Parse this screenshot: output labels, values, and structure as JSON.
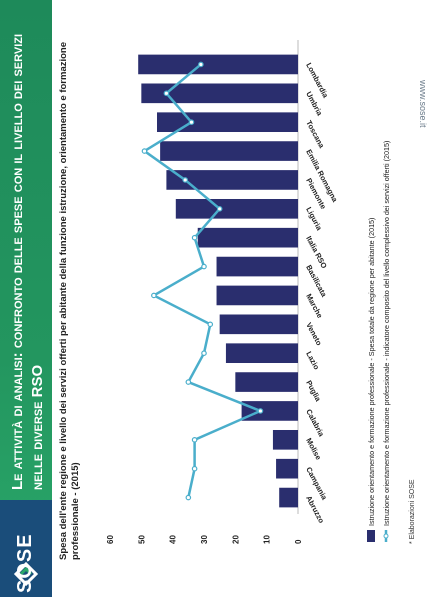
{
  "header": {
    "title": "Le attività di analisi: confronto delle spese con il livello dei servizi nelle diverse RSO"
  },
  "brand": {
    "name": "SOSE",
    "url": "www.sose.it"
  },
  "colors": {
    "banner": "#23965f",
    "bar": "#2a2e6e",
    "line": "#4aaecb"
  },
  "chart_data": {
    "type": "bar",
    "title": "Spesa dell'ente regione e livello dei servizi offerti per abitante della funzione istruzione, orientamento e formazione professionale - (2015)",
    "categories": [
      "Abruzzo",
      "Campania",
      "Molise",
      "Calabria",
      "Puglia",
      "Lazio",
      "Veneto",
      "Marche",
      "Basilicata",
      "Italia RSO",
      "Liguria",
      "Piemonte",
      "Emilia Romagna",
      "Toscana",
      "Umbria",
      "Lombardia"
    ],
    "ylim": [
      0,
      60
    ],
    "yticks": [
      "0",
      "10",
      "20",
      "30",
      "40",
      "50",
      "60"
    ],
    "grid": false,
    "series": [
      {
        "name": "Istruzione orientamento e formazione professionale - Spesa totale da regione per abitante (2015)",
        "type": "bar",
        "values": [
          6,
          7,
          8,
          18,
          20,
          23,
          25,
          26,
          26,
          32,
          39,
          42,
          44,
          45,
          50,
          51
        ]
      },
      {
        "name": "Istruzione orientamento e formazione professionale - indicatore composito del livello complessivo dei servizi offerti (2015)",
        "type": "line",
        "values": [
          35,
          33,
          33,
          12,
          35,
          30,
          28,
          46,
          30,
          33,
          25,
          36,
          49,
          34,
          42,
          31
        ]
      }
    ],
    "note": "* Elaborazioni SOSE"
  }
}
